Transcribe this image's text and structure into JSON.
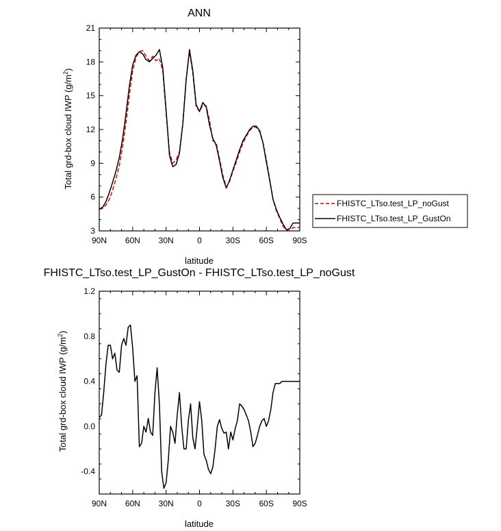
{
  "chart_data": [
    {
      "type": "line",
      "title": "ANN",
      "xlabel": "latitude",
      "ylabel": "Total grd-box cloud IWP (g/m",
      "ylabel_sup": "2",
      "ylabel_close": ")",
      "xlim": [
        -90,
        90
      ],
      "ylim": [
        3,
        21
      ],
      "x_ticks": [
        -90,
        -60,
        -30,
        0,
        30,
        60,
        90
      ],
      "x_tick_labels": [
        "90N",
        "60N",
        "30N",
        "0",
        "30S",
        "60S",
        "90S"
      ],
      "y_ticks": [
        3,
        6,
        9,
        12,
        15,
        18,
        21
      ],
      "y_tick_labels": [
        "3",
        "6",
        "9",
        "12",
        "15",
        "18",
        "21"
      ],
      "legend_position": "right",
      "series": [
        {
          "name": "FHISTC_LTso.test_LP_noGust",
          "color": "#e00000",
          "dash": "dashed",
          "x": [
            -90,
            -87,
            -84,
            -81,
            -78,
            -75,
            -72,
            -69,
            -66,
            -63,
            -60,
            -57,
            -54,
            -51,
            -48,
            -45,
            -42,
            -39,
            -36,
            -33,
            -30,
            -27,
            -24,
            -21,
            -18,
            -15,
            -12,
            -9,
            -6,
            -3,
            0,
            3,
            6,
            9,
            12,
            15,
            18,
            21,
            24,
            27,
            30,
            33,
            36,
            39,
            42,
            45,
            48,
            51,
            54,
            57,
            60,
            63,
            66,
            69,
            72,
            75,
            78,
            81,
            84,
            87,
            90
          ],
          "y": [
            4.9,
            5.0,
            5.3,
            5.8,
            6.6,
            7.6,
            8.8,
            10.5,
            12.6,
            15.0,
            17.2,
            18.4,
            18.9,
            19.0,
            18.5,
            18.1,
            18.5,
            18.1,
            18.3,
            17.2,
            13.5,
            10.0,
            9.0,
            9.3,
            10.0,
            12.5,
            16.5,
            18.9,
            17.0,
            14.0,
            13.6,
            14.2,
            14.1,
            12.8,
            11.0,
            10.8,
            9.4,
            7.9,
            6.9,
            7.4,
            8.3,
            9.1,
            10.0,
            10.8,
            11.4,
            11.9,
            12.2,
            12.2,
            11.8,
            10.8,
            9.3,
            7.6,
            5.8,
            4.8,
            4.1,
            3.4,
            3.1,
            3.0,
            3.3,
            3.3,
            3.3
          ]
        },
        {
          "name": "FHISTC_LTso.test_LP_GustOn",
          "color": "#000000",
          "dash": "solid",
          "x": [
            -90,
            -87,
            -84,
            -81,
            -78,
            -75,
            -72,
            -69,
            -66,
            -63,
            -60,
            -57,
            -54,
            -51,
            -48,
            -45,
            -42,
            -39,
            -36,
            -33,
            -30,
            -27,
            -24,
            -21,
            -18,
            -15,
            -12,
            -9,
            -6,
            -3,
            0,
            3,
            6,
            9,
            12,
            15,
            18,
            21,
            24,
            27,
            30,
            33,
            36,
            39,
            42,
            45,
            48,
            51,
            54,
            57,
            60,
            63,
            66,
            69,
            72,
            75,
            78,
            81,
            84,
            87,
            90
          ],
          "y": [
            4.95,
            5.1,
            5.6,
            6.4,
            7.3,
            8.3,
            9.5,
            11.2,
            13.4,
            15.8,
            17.7,
            18.6,
            18.9,
            18.7,
            18.2,
            18.0,
            18.3,
            18.6,
            19.1,
            17.5,
            13.7,
            9.7,
            8.7,
            8.9,
            9.9,
            12.5,
            16.4,
            19.1,
            17.2,
            14.2,
            13.6,
            14.4,
            14.0,
            12.4,
            11.2,
            10.6,
            9.2,
            7.7,
            6.8,
            7.5,
            8.4,
            9.3,
            10.2,
            11.0,
            11.5,
            12.0,
            12.3,
            12.3,
            11.9,
            10.8,
            9.1,
            7.5,
            5.8,
            4.9,
            4.2,
            3.6,
            3.1,
            3.2,
            3.7,
            3.7,
            3.7
          ]
        }
      ]
    },
    {
      "type": "line",
      "title": "FHISTC_LTso.test_LP_GustOn - FHISTC_LTso.test_LP_noGust",
      "xlabel": "latitude",
      "ylabel": "Total grd-box cloud IWP (g/m",
      "ylabel_sup": "2",
      "ylabel_close": ")",
      "xlim": [
        -90,
        90
      ],
      "ylim": [
        -0.6,
        1.2
      ],
      "x_ticks": [
        -90,
        -60,
        -30,
        0,
        30,
        60,
        90
      ],
      "x_tick_labels": [
        "90N",
        "60N",
        "30N",
        "0",
        "30S",
        "60S",
        "90S"
      ],
      "y_ticks": [
        -0.4,
        0.0,
        0.4,
        0.8,
        1.2
      ],
      "y_tick_labels": [
        "-0.4",
        "0.0",
        "0.4",
        "0.8",
        "1.2"
      ],
      "series": [
        {
          "color": "#000000",
          "dash": "solid",
          "x": [
            -90,
            -88,
            -86,
            -84,
            -82,
            -80,
            -78,
            -76,
            -74,
            -72,
            -70,
            -68,
            -66,
            -64,
            -62,
            -60,
            -58,
            -56,
            -54,
            -52,
            -50,
            -48,
            -46,
            -44,
            -42,
            -40,
            -38,
            -36,
            -34,
            -32,
            -30,
            -28,
            -26,
            -24,
            -22,
            -20,
            -18,
            -16,
            -14,
            -12,
            -10,
            -8,
            -6,
            -4,
            -2,
            0,
            2,
            4,
            6,
            8,
            10,
            12,
            14,
            16,
            18,
            20,
            22,
            24,
            26,
            28,
            30,
            32,
            34,
            36,
            38,
            40,
            42,
            44,
            46,
            48,
            50,
            52,
            54,
            56,
            58,
            60,
            62,
            64,
            66,
            68,
            70,
            72,
            74,
            76,
            78,
            80,
            82,
            84,
            86,
            88,
            90
          ],
          "y": [
            0.08,
            0.1,
            0.3,
            0.55,
            0.72,
            0.72,
            0.6,
            0.65,
            0.5,
            0.48,
            0.72,
            0.78,
            0.72,
            0.88,
            0.9,
            0.7,
            0.4,
            0.45,
            -0.18,
            -0.15,
            0.0,
            -0.05,
            0.07,
            -0.05,
            -0.08,
            0.3,
            0.52,
            0.2,
            -0.4,
            -0.55,
            -0.5,
            -0.3,
            0.0,
            -0.05,
            -0.15,
            0.1,
            0.3,
            0.0,
            -0.2,
            -0.2,
            0.05,
            0.2,
            -0.1,
            -0.2,
            0.0,
            0.22,
            0.05,
            -0.25,
            -0.3,
            -0.38,
            -0.42,
            -0.36,
            -0.2,
            0.0,
            0.06,
            -0.02,
            -0.06,
            -0.05,
            -0.2,
            -0.05,
            -0.12,
            -0.02,
            0.05,
            0.2,
            0.18,
            0.15,
            0.1,
            0.05,
            -0.05,
            -0.18,
            -0.15,
            -0.08,
            0.0,
            0.05,
            0.07,
            0.0,
            0.05,
            0.15,
            0.3,
            0.38,
            0.38,
            0.38,
            0.4,
            0.4,
            0.4,
            0.4,
            0.4,
            0.4,
            0.4,
            0.4,
            0.4
          ]
        }
      ]
    }
  ]
}
